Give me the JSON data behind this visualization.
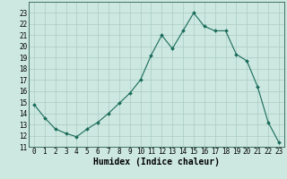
{
  "x": [
    0,
    1,
    2,
    3,
    4,
    5,
    6,
    7,
    8,
    9,
    10,
    11,
    12,
    13,
    14,
    15,
    16,
    17,
    18,
    19,
    20,
    21,
    22,
    23
  ],
  "y": [
    14.8,
    13.6,
    12.6,
    12.2,
    11.9,
    12.6,
    13.2,
    14.0,
    14.9,
    15.8,
    17.0,
    19.2,
    21.0,
    19.8,
    21.4,
    23.0,
    21.8,
    21.4,
    21.4,
    19.3,
    18.7,
    16.4,
    13.2,
    11.4
  ],
  "xlabel": "Humidex (Indice chaleur)",
  "ylim": [
    11,
    24
  ],
  "xlim": [
    -0.5,
    23.5
  ],
  "yticks": [
    11,
    12,
    13,
    14,
    15,
    16,
    17,
    18,
    19,
    20,
    21,
    22,
    23
  ],
  "xticks": [
    0,
    1,
    2,
    3,
    4,
    5,
    6,
    7,
    8,
    9,
    10,
    11,
    12,
    13,
    14,
    15,
    16,
    17,
    18,
    19,
    20,
    21,
    22,
    23
  ],
  "line_color": "#1a6b5a",
  "marker": "D",
  "marker_size": 2.0,
  "bg_color": "#cce8e0",
  "grid_color": "#aaccc4",
  "tick_label_fontsize": 5.5,
  "xlabel_fontsize": 7.0
}
